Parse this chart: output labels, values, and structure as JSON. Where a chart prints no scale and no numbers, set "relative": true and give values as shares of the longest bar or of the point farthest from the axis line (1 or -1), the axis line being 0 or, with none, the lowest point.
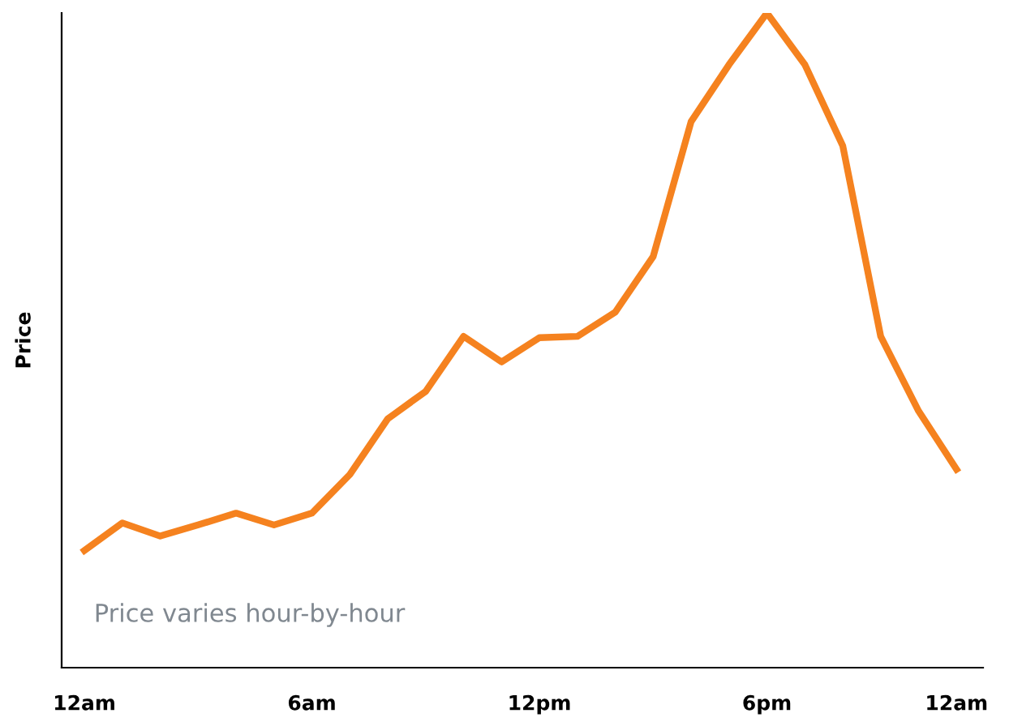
{
  "chart_data": {
    "type": "line",
    "relative": true,
    "ylabel": "Price",
    "annotations": [
      "Price varies hour-by-hour"
    ],
    "categories": [
      "12am",
      null,
      null,
      null,
      null,
      null,
      "6am",
      null,
      null,
      null,
      null,
      null,
      "12pm",
      null,
      null,
      null,
      null,
      null,
      "6pm",
      null,
      null,
      null,
      null,
      "12am"
    ],
    "series": [
      {
        "color": "#f5821f",
        "values": [
          0.179,
          0.221,
          0.201,
          0.218,
          0.236,
          0.218,
          0.236,
          0.295,
          0.38,
          0.422,
          0.506,
          0.467,
          0.504,
          0.506,
          0.543,
          0.628,
          0.834,
          0.921,
          1,
          0.921,
          0.797,
          0.506,
          0.392,
          0.303
        ]
      }
    ],
    "grid": false,
    "legend": false,
    "marker": "none",
    "line_style": "solid"
  }
}
